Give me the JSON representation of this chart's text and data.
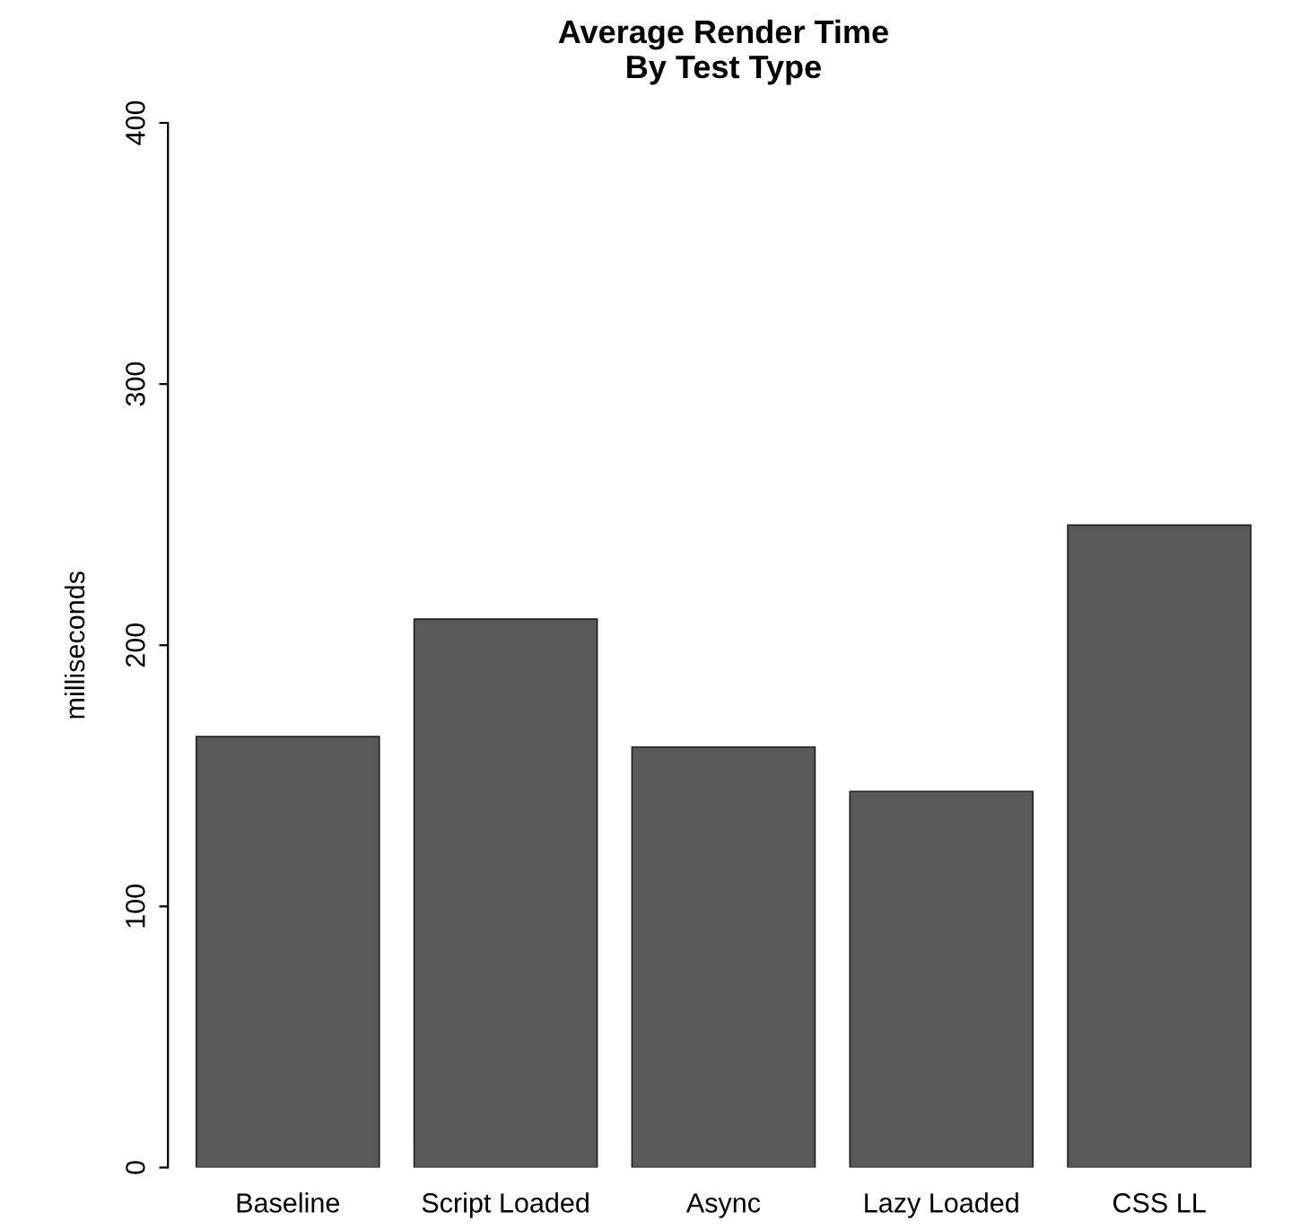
{
  "chart_data": {
    "type": "bar",
    "title": "Average Render Time\nBy Test Type",
    "ylabel": "milliseconds",
    "categories": [
      "Baseline",
      "Script Loaded",
      "Async",
      "Lazy Loaded",
      "CSS LL"
    ],
    "values": [
      165,
      210,
      161,
      144,
      246
    ],
    "color": "#595959",
    "ylim": [
      0,
      400
    ],
    "yticks": [
      0,
      100,
      200,
      300,
      400
    ],
    "grid": false,
    "legend": false
  }
}
